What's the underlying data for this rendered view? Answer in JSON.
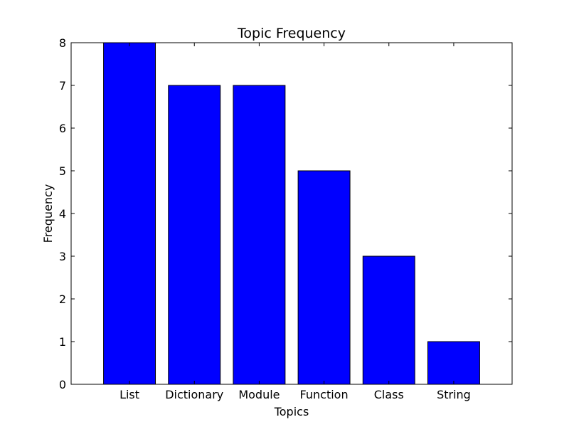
{
  "chart_data": {
    "type": "bar",
    "title": "Topic Frequency",
    "xlabel": "Topics",
    "ylabel": "Frequency",
    "categories": [
      "List",
      "Dictionary",
      "Module",
      "Function",
      "Class",
      "String"
    ],
    "values": [
      8,
      7,
      7,
      5,
      3,
      1
    ],
    "ylim": [
      0,
      8
    ],
    "yticks": [
      "0",
      "1",
      "2",
      "3",
      "4",
      "5",
      "6",
      "7",
      "8"
    ],
    "grid": false,
    "legend": "none",
    "bar_color": "#0000ff",
    "edge_color": "#000000"
  }
}
